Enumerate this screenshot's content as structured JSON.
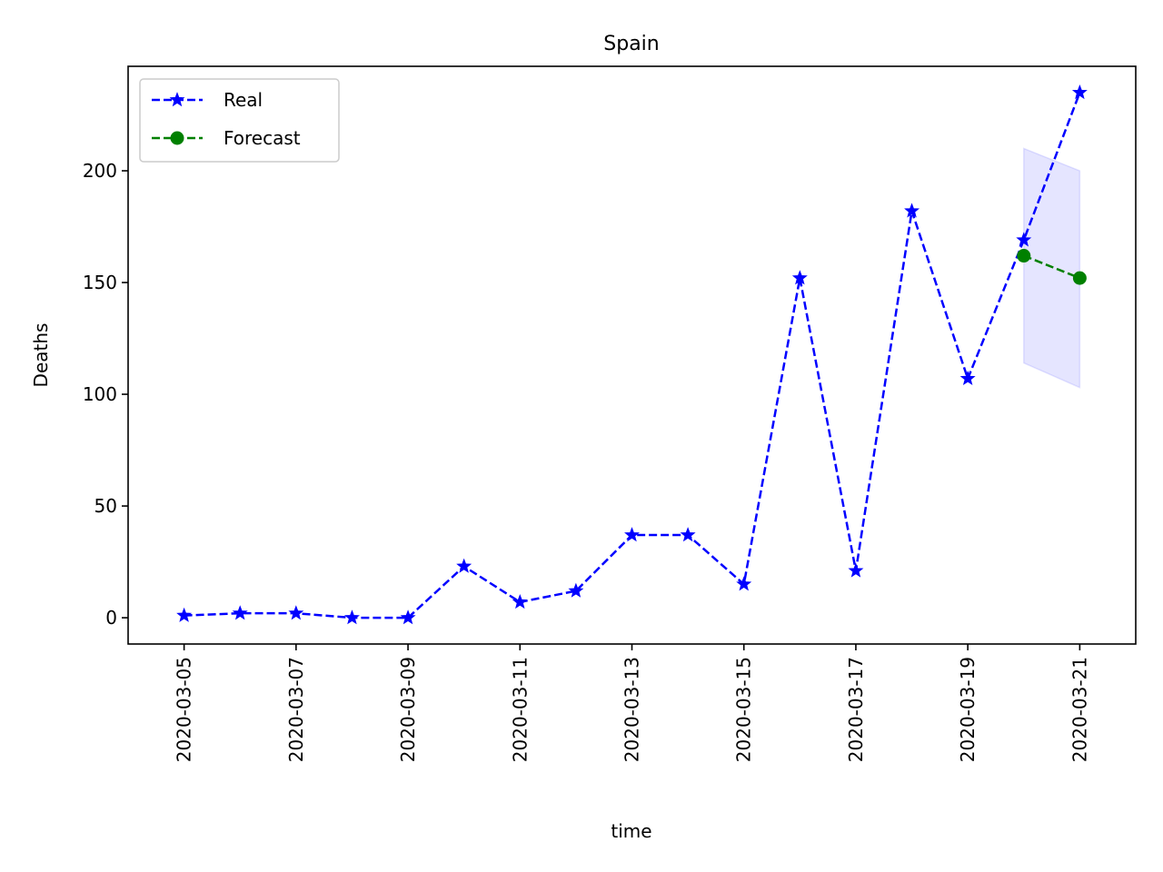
{
  "chart_data": {
    "type": "line",
    "title": "Spain",
    "xlabel": "time",
    "ylabel": "Deaths",
    "ylim": [
      -11.75,
      246.75
    ],
    "yticks": [
      0,
      50,
      100,
      150,
      200
    ],
    "xlim": [
      "2020-03-04",
      "2020-03-22"
    ],
    "xticks": [
      "2020-03-05",
      "2020-03-07",
      "2020-03-09",
      "2020-03-11",
      "2020-03-13",
      "2020-03-15",
      "2020-03-17",
      "2020-03-19",
      "2020-03-21"
    ],
    "legend": "top-left",
    "grid": false,
    "series": [
      {
        "name": "Real",
        "color": "#0000ff",
        "marker": "star",
        "linestyle": "dashed",
        "x": [
          "2020-03-05",
          "2020-03-06",
          "2020-03-07",
          "2020-03-08",
          "2020-03-09",
          "2020-03-10",
          "2020-03-11",
          "2020-03-12",
          "2020-03-13",
          "2020-03-14",
          "2020-03-15",
          "2020-03-16",
          "2020-03-17",
          "2020-03-18",
          "2020-03-19",
          "2020-03-20",
          "2020-03-21"
        ],
        "values": [
          1,
          2,
          2,
          0,
          0,
          23,
          7,
          12,
          37,
          37,
          15,
          152,
          21,
          182,
          107,
          169,
          235
        ]
      },
      {
        "name": "Forecast",
        "color": "#008000",
        "marker": "circle",
        "linestyle": "dashed",
        "x": [
          "2020-03-20",
          "2020-03-21"
        ],
        "values": [
          162,
          152
        ]
      }
    ],
    "band": {
      "color": "#0000ff",
      "opacity": 0.1,
      "x": [
        "2020-03-20",
        "2020-03-21"
      ],
      "lower": [
        114,
        103
      ],
      "upper": [
        210,
        200
      ]
    }
  }
}
